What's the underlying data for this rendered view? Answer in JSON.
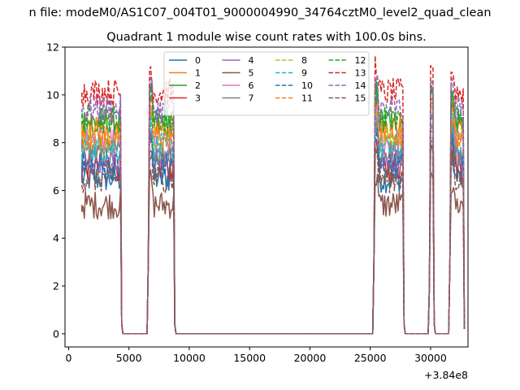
{
  "chart_data": {
    "type": "line",
    "suptitle": "n file: modeM0/AS1C07_004T01_9000004990_34764cztM0_level2_quad_clean",
    "title": "Quadrant 1 module wise count rates with 100.0s bins.",
    "xlabel": "",
    "ylabel": "",
    "x_offset_label": "+3.84e8",
    "xlim": [
      -300,
      33100
    ],
    "ylim": [
      -0.55,
      12
    ],
    "xticks": [
      0,
      5000,
      10000,
      15000,
      20000,
      25000,
      30000
    ],
    "xtick_labels": [
      "0",
      "5000",
      "10000",
      "15000",
      "20000",
      "25000",
      "30000"
    ],
    "yticks": [
      0,
      2,
      4,
      6,
      8,
      10,
      12
    ],
    "ytick_labels": [
      "0",
      "2",
      "4",
      "6",
      "8",
      "10",
      "12"
    ],
    "grid": false,
    "legend_position": "top-center",
    "legend_columns": 4,
    "bin_width_s": 100,
    "segments": [
      {
        "start": 1100,
        "end": 4300
      },
      {
        "start": 6700,
        "end": 8700
      },
      {
        "start": 25400,
        "end": 27700
      },
      {
        "start": 30000,
        "end": 30200
      },
      {
        "start": 31700,
        "end": 32700
      }
    ],
    "series": [
      {
        "name": "0",
        "color": "#1f77b4",
        "dash": "solid",
        "level": 6.5
      },
      {
        "name": "1",
        "color": "#ff7f0e",
        "dash": "solid",
        "level": 8.7
      },
      {
        "name": "2",
        "color": "#2ca02c",
        "dash": "solid",
        "level": 8.9
      },
      {
        "name": "3",
        "color": "#d62728",
        "dash": "solid",
        "level": 7.0
      },
      {
        "name": "4",
        "color": "#9467bd",
        "dash": "solid",
        "level": 7.3
      },
      {
        "name": "5",
        "color": "#8c564b",
        "dash": "solid",
        "level": 5.4
      },
      {
        "name": "6",
        "color": "#e377c2",
        "dash": "solid",
        "level": 8.0
      },
      {
        "name": "7",
        "color": "#7f7f7f",
        "dash": "solid",
        "level": 7.6
      },
      {
        "name": "8",
        "color": "#bcbd22",
        "dash": "dashed",
        "level": 8.2
      },
      {
        "name": "9",
        "color": "#17becf",
        "dash": "dashed",
        "level": 7.8
      },
      {
        "name": "10",
        "color": "#1f77b4",
        "dash": "dashed",
        "level": 7.0
      },
      {
        "name": "11",
        "color": "#ff7f0e",
        "dash": "dashed",
        "level": 8.3
      },
      {
        "name": "12",
        "color": "#2ca02c",
        "dash": "dashed",
        "level": 9.0
      },
      {
        "name": "13",
        "color": "#d62728",
        "dash": "dashed",
        "level": 10.1
      },
      {
        "name": "14",
        "color": "#9467bd",
        "dash": "dashed",
        "level": 9.4
      },
      {
        "name": "15",
        "color": "#8c564b",
        "dash": "dashed",
        "level": 6.5
      }
    ]
  }
}
